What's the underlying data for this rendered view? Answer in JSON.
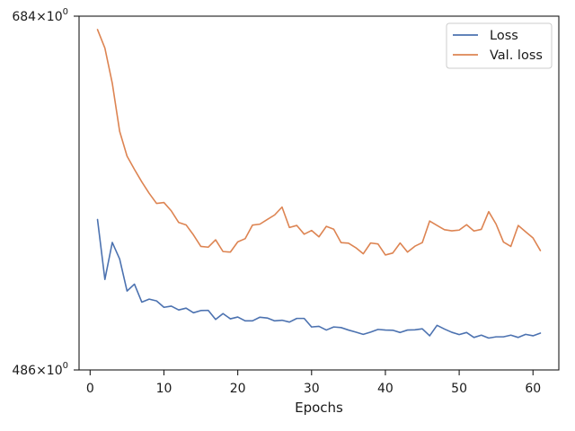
{
  "chart_data": {
    "type": "line",
    "title": "",
    "xlabel": "Epochs",
    "ylabel": "",
    "y_scale": "log",
    "xlim": [
      -1.5,
      63.5
    ],
    "ylim": [
      486,
      684
    ],
    "x_ticks": [
      0,
      10,
      20,
      30,
      40,
      50,
      60
    ],
    "y_tick_labels": [
      {
        "value": 684,
        "mantissa": "684",
        "exponent": "0"
      },
      {
        "value": 486,
        "mantissa": "486",
        "exponent": "0"
      }
    ],
    "grid": false,
    "legend_position": "top-right",
    "x": [
      1,
      2,
      3,
      4,
      5,
      6,
      7,
      8,
      9,
      10,
      11,
      12,
      13,
      14,
      15,
      16,
      17,
      18,
      19,
      20,
      21,
      22,
      23,
      24,
      25,
      26,
      27,
      28,
      29,
      30,
      31,
      32,
      33,
      34,
      35,
      36,
      37,
      38,
      39,
      40,
      41,
      42,
      43,
      44,
      45,
      46,
      47,
      48,
      49,
      50,
      51,
      52,
      53,
      54,
      55,
      56,
      57,
      58,
      59,
      60,
      61
    ],
    "series": [
      {
        "name": "Loss",
        "color": "#4c72b0",
        "values": [
          562.0,
          530.4,
          549.7,
          541.0,
          524.5,
          528.0,
          518.9,
          520.4,
          519.5,
          516.3,
          516.9,
          515.0,
          515.9,
          513.6,
          514.7,
          514.8,
          510.3,
          513.2,
          510.6,
          511.5,
          509.6,
          509.6,
          511.4,
          511.0,
          509.6,
          509.9,
          509.0,
          510.8,
          510.8,
          506.6,
          506.9,
          505.1,
          506.6,
          506.3,
          505.1,
          504.1,
          503.0,
          504.1,
          505.4,
          505.1,
          505.0,
          503.9,
          505.1,
          505.2,
          505.7,
          502.3,
          507.4,
          505.6,
          504.0,
          502.9,
          503.9,
          501.5,
          502.6,
          501.2,
          501.8,
          501.8,
          502.6,
          501.5,
          503.0,
          502.3,
          503.6
        ]
      },
      {
        "name": "Val. loss",
        "color": "#dd8452",
        "values": [
          675.2,
          663.2,
          641.1,
          612.0,
          597.5,
          589.9,
          582.8,
          576.4,
          570.8,
          571.3,
          566.7,
          560.4,
          559.1,
          553.7,
          547.6,
          547.2,
          551.1,
          544.9,
          544.6,
          550.0,
          551.7,
          559.0,
          559.5,
          562.0,
          564.5,
          568.8,
          557.7,
          558.8,
          554.1,
          556.1,
          552.7,
          558.3,
          556.8,
          549.6,
          549.3,
          546.9,
          543.7,
          549.4,
          548.9,
          543.1,
          544.1,
          549.4,
          544.6,
          547.7,
          549.6,
          561.2,
          558.8,
          556.5,
          555.9,
          556.3,
          559.2,
          555.8,
          556.7,
          566.3,
          559.5,
          549.9,
          547.6,
          558.8,
          555.4,
          552.1,
          545.4
        ]
      }
    ]
  }
}
